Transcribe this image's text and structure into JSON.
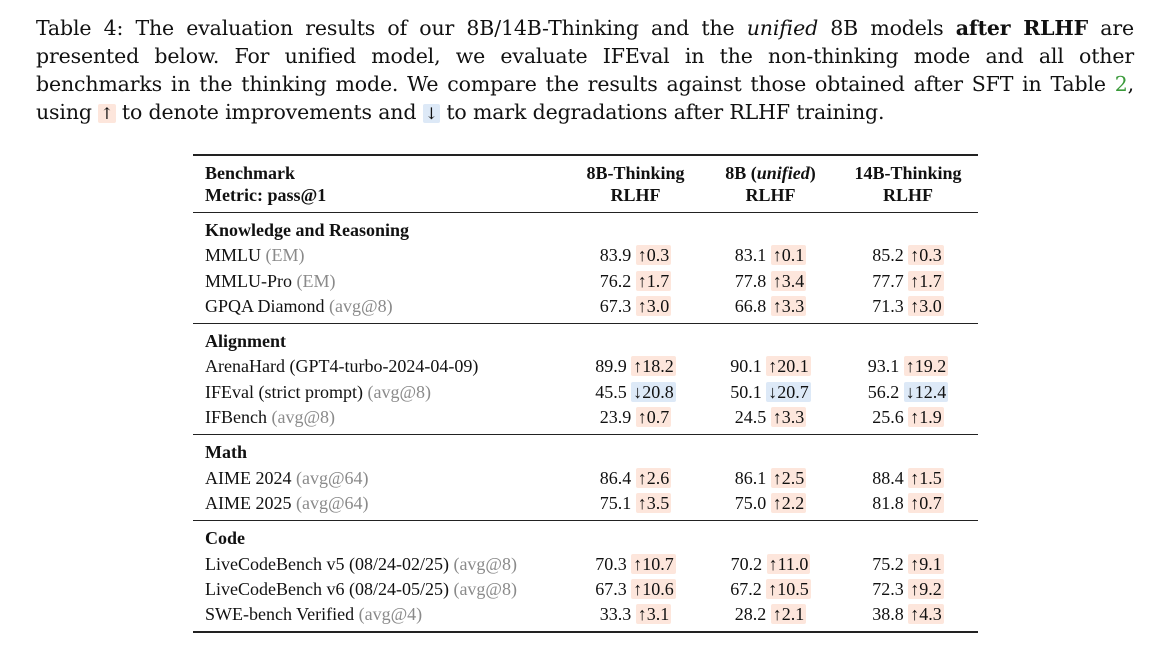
{
  "caption": {
    "prefix": "Table 4: The evaluation results of our 8B/14B-Thinking and the ",
    "unified_word": "unified",
    "mid1": " 8B models ",
    "bold_phrase": "after RLHF",
    "mid2": " are presented below. For unified model, we evaluate IFEval in the non-thinking mode and all other benchmarks in the thinking mode. We compare the results against those obtained after SFT in Table ",
    "table_ref": "2",
    "mid3": ", using ",
    "up_arrow": "↑",
    "mid4": " to denote improvements and ",
    "down_arrow": "↓",
    "suffix": " to mark degradations after RLHF training."
  },
  "table": {
    "header": {
      "benchmark": "Benchmark",
      "metric": "Metric: pass@1",
      "col1_line1": "8B-Thinking",
      "col1_line2": "RLHF",
      "col2_line1_pre": "8B (",
      "col2_line1_it": "unified",
      "col2_line1_post": ")",
      "col2_line2": "RLHF",
      "col3_line1": "14B-Thinking",
      "col3_line2": "RLHF"
    },
    "sections": [
      {
        "title": "Knowledge and Reasoning",
        "rows": [
          {
            "name": "MMLU",
            "metric": "(EM)",
            "cells": [
              {
                "v": "83.9",
                "d": "↑0.3",
                "dir": "up"
              },
              {
                "v": "83.1",
                "d": "↑0.1",
                "dir": "up"
              },
              {
                "v": "85.2",
                "d": "↑0.3",
                "dir": "up"
              }
            ]
          },
          {
            "name": "MMLU-Pro",
            "metric": "(EM)",
            "cells": [
              {
                "v": "76.2",
                "d": "↑1.7",
                "dir": "up"
              },
              {
                "v": "77.8",
                "d": "↑3.4",
                "dir": "up"
              },
              {
                "v": "77.7",
                "d": "↑1.7",
                "dir": "up"
              }
            ]
          },
          {
            "name": "GPQA Diamond",
            "metric": "(avg@8)",
            "cells": [
              {
                "v": "67.3",
                "d": "↑3.0",
                "dir": "up"
              },
              {
                "v": "66.8",
                "d": "↑3.3",
                "dir": "up"
              },
              {
                "v": "71.3",
                "d": "↑3.0",
                "dir": "up"
              }
            ]
          }
        ]
      },
      {
        "title": "Alignment",
        "rows": [
          {
            "name": "ArenaHard (GPT4-turbo-2024-04-09)",
            "metric": "",
            "cells": [
              {
                "v": "89.9",
                "d": "↑18.2",
                "dir": "up"
              },
              {
                "v": "90.1",
                "d": "↑20.1",
                "dir": "up"
              },
              {
                "v": "93.1",
                "d": "↑19.2",
                "dir": "up"
              }
            ]
          },
          {
            "name": "IFEval (strict prompt)",
            "metric": "(avg@8)",
            "cells": [
              {
                "v": "45.5",
                "d": "↓20.8",
                "dir": "down"
              },
              {
                "v": "50.1",
                "d": "↓20.7",
                "dir": "down"
              },
              {
                "v": "56.2",
                "d": "↓12.4",
                "dir": "down"
              }
            ]
          },
          {
            "name": "IFBench",
            "metric": "(avg@8)",
            "cells": [
              {
                "v": "23.9",
                "d": "↑0.7",
                "dir": "up"
              },
              {
                "v": "24.5",
                "d": "↑3.3",
                "dir": "up"
              },
              {
                "v": "25.6",
                "d": "↑1.9",
                "dir": "up"
              }
            ]
          }
        ]
      },
      {
        "title": "Math",
        "rows": [
          {
            "name": "AIME 2024",
            "metric": "(avg@64)",
            "cells": [
              {
                "v": "86.4",
                "d": "↑2.6",
                "dir": "up"
              },
              {
                "v": "86.1",
                "d": "↑2.5",
                "dir": "up"
              },
              {
                "v": "88.4",
                "d": "↑1.5",
                "dir": "up"
              }
            ]
          },
          {
            "name": "AIME 2025",
            "metric": "(avg@64)",
            "cells": [
              {
                "v": "75.1",
                "d": "↑3.5",
                "dir": "up"
              },
              {
                "v": "75.0",
                "d": "↑2.2",
                "dir": "up"
              },
              {
                "v": "81.8",
                "d": "↑0.7",
                "dir": "up"
              }
            ]
          }
        ]
      },
      {
        "title": "Code",
        "rows": [
          {
            "name": "LiveCodeBench v5 (08/24-02/25)",
            "metric": "(avg@8)",
            "cells": [
              {
                "v": "70.3",
                "d": "↑10.7",
                "dir": "up"
              },
              {
                "v": "70.2",
                "d": "↑11.0",
                "dir": "up"
              },
              {
                "v": "75.2",
                "d": "↑9.1",
                "dir": "up"
              }
            ]
          },
          {
            "name": "LiveCodeBench v6 (08/24-05/25)",
            "metric": "(avg@8)",
            "cells": [
              {
                "v": "67.3",
                "d": "↑10.6",
                "dir": "up"
              },
              {
                "v": "67.2",
                "d": "↑10.5",
                "dir": "up"
              },
              {
                "v": "72.3",
                "d": "↑9.2",
                "dir": "up"
              }
            ]
          },
          {
            "name": "SWE-bench Verified",
            "metric": "(avg@4)",
            "cells": [
              {
                "v": "33.3",
                "d": "↑3.1",
                "dir": "up"
              },
              {
                "v": "28.2",
                "d": "↑2.1",
                "dir": "up"
              },
              {
                "v": "38.8",
                "d": "↑4.3",
                "dir": "up"
              }
            ]
          }
        ]
      }
    ]
  }
}
